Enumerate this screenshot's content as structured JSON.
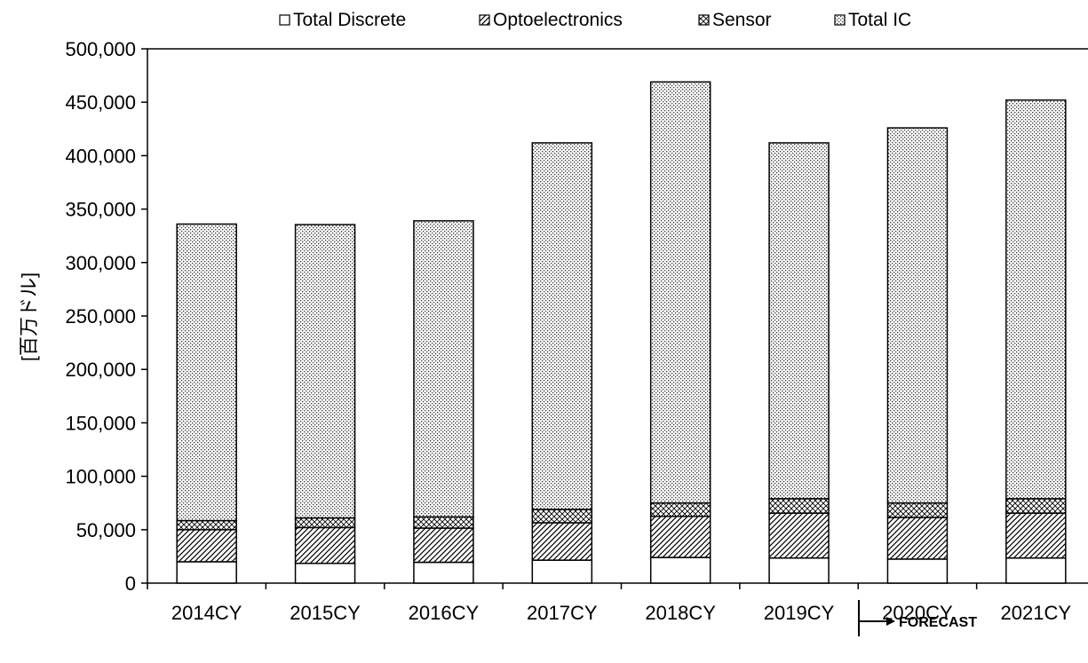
{
  "chart_data": {
    "type": "bar",
    "stacked": true,
    "title": "",
    "xlabel": "",
    "ylabel": "[百万ドル]",
    "ylim": [
      0,
      500000
    ],
    "yticks": [
      0,
      50000,
      100000,
      150000,
      200000,
      250000,
      300000,
      350000,
      400000,
      450000,
      500000
    ],
    "ytick_labels": [
      "0",
      "50,000",
      "100,000",
      "150,000",
      "200,000",
      "250,000",
      "300,000",
      "350,000",
      "400,000",
      "450,000",
      "500,000"
    ],
    "categories": [
      "2014CY",
      "2015CY",
      "2016CY",
      "2017CY",
      "2018CY",
      "2019CY",
      "2020CY",
      "2021CY"
    ],
    "legend_position": "top",
    "grid": false,
    "series": [
      {
        "name": "Total Discrete",
        "pattern": "blank",
        "values": [
          20000,
          18500,
          19500,
          21500,
          24000,
          23500,
          22500,
          23500
        ]
      },
      {
        "name": "Optoelectronics",
        "pattern": "diagonal-hatch",
        "values": [
          30000,
          33500,
          32000,
          35000,
          38500,
          42000,
          39000,
          42000
        ]
      },
      {
        "name": "Sensor",
        "pattern": "cross-hatch",
        "values": [
          8500,
          9000,
          10500,
          12500,
          12500,
          13500,
          13500,
          13500
        ]
      },
      {
        "name": "Total IC",
        "pattern": "dotted",
        "values": [
          277500,
          274500,
          277000,
          343000,
          394000,
          333000,
          351000,
          373000
        ]
      }
    ],
    "annotation": {
      "text": "FORECAST",
      "starts_at_category": "2020CY"
    }
  }
}
